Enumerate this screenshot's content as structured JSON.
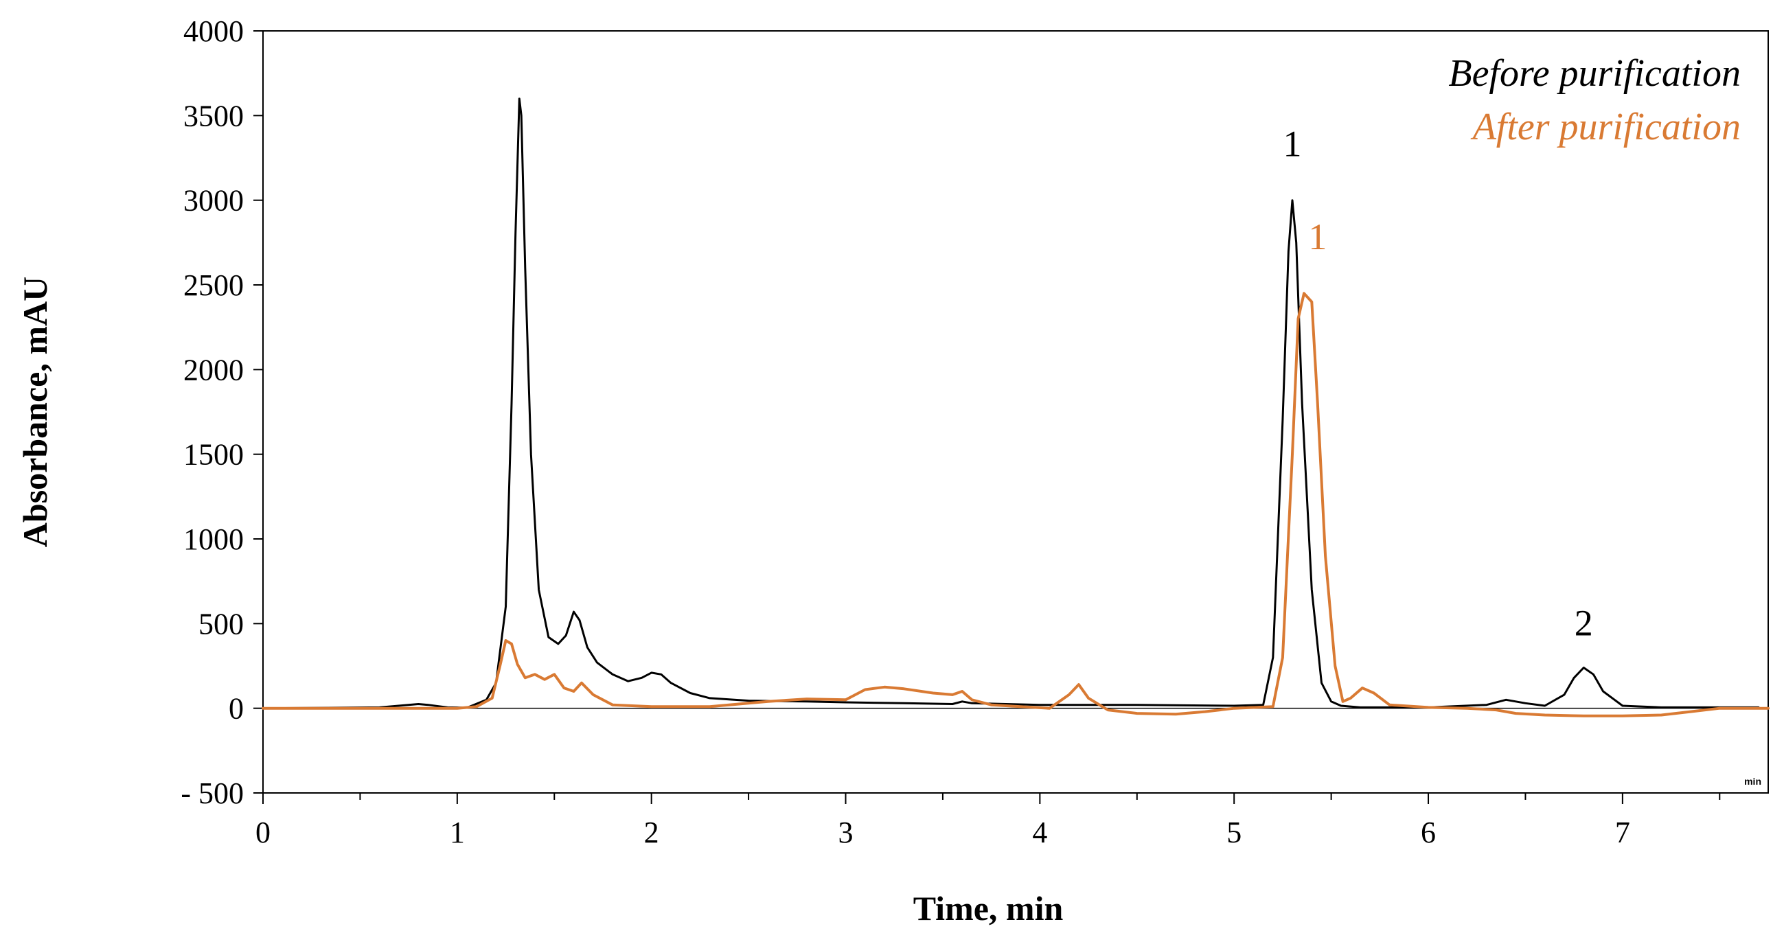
{
  "chart_data": {
    "type": "line",
    "xlabel": "Time, min",
    "ylabel": "Absorbance, mAU",
    "xlim": [
      0,
      7.75
    ],
    "ylim": [
      -500,
      4000
    ],
    "x_ticks": [
      0,
      1,
      2,
      3,
      4,
      5,
      6,
      7
    ],
    "x_tick_labels": [
      "0",
      "1",
      "2",
      "3",
      "4",
      "5",
      "6",
      "7"
    ],
    "y_ticks": [
      -500,
      0,
      500,
      1000,
      1500,
      2000,
      2500,
      3000,
      3500,
      4000
    ],
    "y_tick_labels": [
      "- 500",
      "0",
      "500",
      "1000",
      "1500",
      "2000",
      "2500",
      "3000",
      "3500",
      "4000"
    ],
    "unit_label": "min",
    "grid": false,
    "legend": {
      "position": "top-right",
      "entries": [
        {
          "label": "Before purification",
          "color": "#000000"
        },
        {
          "label": "After purification",
          "color": "#d97a33"
        }
      ]
    },
    "series": [
      {
        "name": "Before purification",
        "color": "#000000",
        "x": [
          0,
          0.6,
          0.75,
          0.8,
          0.85,
          0.95,
          1.05,
          1.15,
          1.2,
          1.25,
          1.28,
          1.3,
          1.32,
          1.33,
          1.35,
          1.38,
          1.42,
          1.47,
          1.52,
          1.56,
          1.6,
          1.63,
          1.67,
          1.72,
          1.8,
          1.88,
          1.95,
          2.0,
          2.05,
          2.1,
          2.2,
          2.3,
          2.5,
          2.8,
          3.0,
          3.3,
          3.55,
          3.6,
          3.65,
          4.0,
          4.5,
          5.0,
          5.15,
          5.2,
          5.25,
          5.28,
          5.3,
          5.32,
          5.35,
          5.4,
          5.45,
          5.5,
          5.55,
          5.65,
          6.0,
          6.3,
          6.4,
          6.5,
          6.6,
          6.7,
          6.75,
          6.8,
          6.85,
          6.9,
          7.0,
          7.2,
          7.5,
          7.7
        ],
        "y": [
          0,
          5,
          20,
          25,
          20,
          5,
          3,
          50,
          150,
          600,
          1800,
          2800,
          3600,
          3500,
          2600,
          1500,
          700,
          420,
          380,
          430,
          570,
          520,
          360,
          270,
          200,
          160,
          180,
          210,
          200,
          150,
          90,
          60,
          45,
          40,
          35,
          30,
          25,
          40,
          30,
          20,
          20,
          15,
          20,
          300,
          1700,
          2700,
          3000,
          2750,
          1800,
          700,
          150,
          40,
          15,
          5,
          5,
          20,
          50,
          30,
          15,
          80,
          180,
          240,
          200,
          100,
          15,
          5,
          5,
          5
        ]
      },
      {
        "name": "After purification",
        "color": "#d97a33",
        "x": [
          0,
          0.5,
          0.8,
          1.0,
          1.1,
          1.18,
          1.22,
          1.25,
          1.28,
          1.31,
          1.35,
          1.4,
          1.45,
          1.5,
          1.55,
          1.6,
          1.64,
          1.7,
          1.8,
          2.0,
          2.3,
          2.6,
          2.8,
          3.0,
          3.1,
          3.2,
          3.3,
          3.45,
          3.55,
          3.6,
          3.65,
          3.75,
          3.9,
          4.05,
          4.15,
          4.2,
          4.25,
          4.35,
          4.5,
          4.7,
          4.85,
          5.0,
          5.2,
          5.25,
          5.3,
          5.33,
          5.36,
          5.4,
          5.43,
          5.47,
          5.52,
          5.56,
          5.6,
          5.66,
          5.72,
          5.8,
          6.0,
          6.2,
          6.35,
          6.45,
          6.6,
          6.8,
          7.0,
          7.2,
          7.35,
          7.5,
          7.75
        ],
        "y": [
          0,
          0,
          0,
          0,
          10,
          60,
          250,
          400,
          380,
          260,
          180,
          200,
          170,
          200,
          120,
          100,
          150,
          80,
          20,
          10,
          10,
          40,
          55,
          50,
          110,
          125,
          115,
          90,
          80,
          100,
          50,
          20,
          10,
          0,
          80,
          140,
          60,
          -10,
          -30,
          -35,
          -20,
          0,
          10,
          300,
          1500,
          2300,
          2450,
          2400,
          1800,
          900,
          250,
          40,
          60,
          120,
          90,
          20,
          5,
          0,
          -10,
          -30,
          -40,
          -45,
          -45,
          -40,
          -20,
          0,
          0
        ]
      }
    ],
    "annotations": [
      {
        "text": "1",
        "x": 5.3,
        "y": 3260,
        "color": "#000000"
      },
      {
        "text": "1",
        "x": 5.43,
        "y": 2710,
        "color": "#d97a33"
      },
      {
        "text": "2",
        "x": 6.8,
        "y": 430,
        "color": "#000000"
      }
    ]
  }
}
